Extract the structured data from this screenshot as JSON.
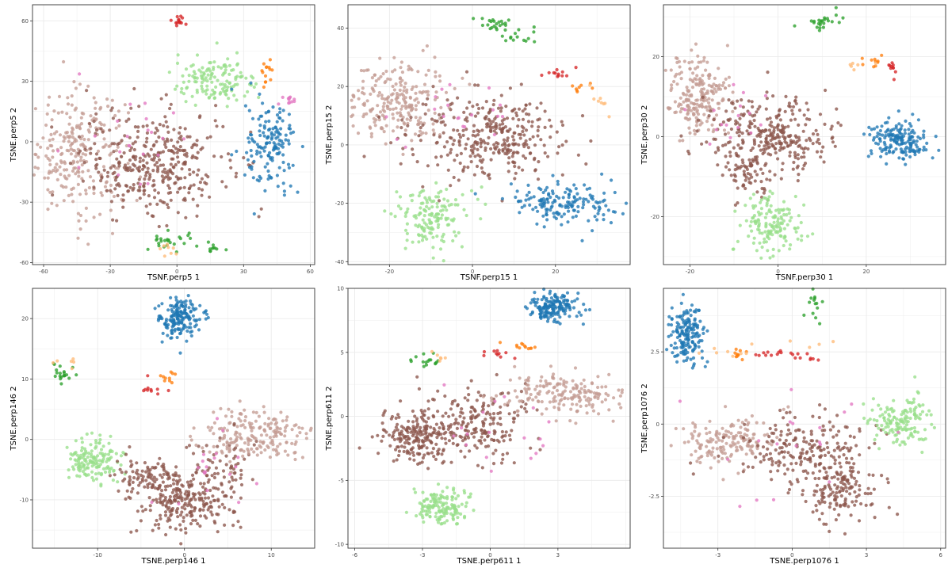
{
  "palette": {
    "blue": "#1f77b4",
    "orange": "#ff7f0e",
    "peach": "#ffbb78",
    "green": "#2ca02c",
    "light_green": "#98df8a",
    "red": "#d62728",
    "brown": "#8c564b",
    "tan": "#c49c94",
    "pink": "#e377c2",
    "grid": "#ebebeb",
    "border": "#333333"
  },
  "chart_data": [
    {
      "type": "scatter",
      "xlabel": "TSNF.perp5 1",
      "ylabel": "TSNE.perp5 2",
      "xlim": [
        -65,
        62
      ],
      "ylim": [
        -61,
        68
      ],
      "xticks": [
        -60,
        -30,
        0,
        30,
        60
      ],
      "yticks": [
        -60,
        -30,
        0,
        30,
        60
      ],
      "grid": true,
      "clusters": [
        {
          "color": "tan",
          "cx": -45,
          "cy": -5,
          "sx": 11,
          "sy": 15,
          "n": 260
        },
        {
          "color": "brown",
          "cx": -10,
          "cy": -10,
          "sx": 16,
          "sy": 13,
          "n": 360
        },
        {
          "color": "light_green",
          "cx": 18,
          "cy": 30,
          "sx": 10,
          "sy": 6,
          "n": 140
        },
        {
          "color": "blue",
          "cx": 42,
          "cy": -3,
          "sx": 5.5,
          "sy": 11,
          "n": 150
        },
        {
          "color": "red",
          "cx": 2,
          "cy": 60,
          "sx": 2.5,
          "sy": 1.5,
          "n": 14
        },
        {
          "color": "orange",
          "cx": 40,
          "cy": 36,
          "sx": 2,
          "sy": 4,
          "n": 14
        },
        {
          "color": "pink",
          "cx": 50,
          "cy": 20,
          "sx": 3,
          "sy": 1.5,
          "n": 12
        },
        {
          "color": "green",
          "cx": -2,
          "cy": -50,
          "sx": 5,
          "sy": 2.5,
          "n": 25
        },
        {
          "color": "green",
          "cx": 16,
          "cy": -52,
          "sx": 3,
          "sy": 1.5,
          "n": 10
        },
        {
          "color": "peach",
          "cx": -5,
          "cy": -54,
          "sx": 3,
          "sy": 1.5,
          "n": 8
        },
        {
          "color": "pink",
          "cx": -20,
          "cy": 0,
          "sx": 14,
          "sy": 14,
          "n": 22
        }
      ]
    },
    {
      "type": "scatter",
      "xlabel": "TSNF.perp15 1",
      "ylabel": "TSNE.perp15 2",
      "xlim": [
        -30,
        38
      ],
      "ylim": [
        -41,
        48
      ],
      "xticks": [
        -20,
        0,
        20
      ],
      "yticks": [
        -40,
        -20,
        0,
        20,
        40
      ],
      "grid": true,
      "clusters": [
        {
          "color": "tan",
          "cx": -19,
          "cy": 15,
          "sx": 6.5,
          "sy": 7,
          "n": 240
        },
        {
          "color": "brown",
          "cx": 3,
          "cy": 3,
          "sx": 9.5,
          "sy": 7,
          "n": 330
        },
        {
          "color": "light_green",
          "cx": -10,
          "cy": -25,
          "sx": 4.5,
          "sy": 5,
          "n": 150
        },
        {
          "color": "blue",
          "cx": 22,
          "cy": -20,
          "sx": 6.5,
          "sy": 3.5,
          "n": 160
        },
        {
          "color": "green",
          "cx": 5,
          "cy": 41,
          "sx": 2,
          "sy": 1.5,
          "n": 22
        },
        {
          "color": "green",
          "cx": 11,
          "cy": 37,
          "sx": 2.5,
          "sy": 1.5,
          "n": 14
        },
        {
          "color": "red",
          "cx": 21,
          "cy": 24.5,
          "sx": 2,
          "sy": 0.8,
          "n": 12
        },
        {
          "color": "orange",
          "cx": 27,
          "cy": 20,
          "sx": 2,
          "sy": 1,
          "n": 8
        },
        {
          "color": "peach",
          "cx": 31,
          "cy": 15,
          "sx": 2,
          "sy": 2,
          "n": 8
        },
        {
          "color": "pink",
          "cx": -5,
          "cy": 10,
          "sx": 8,
          "sy": 6,
          "n": 20
        }
      ]
    },
    {
      "type": "scatter",
      "xlabel": "TSNF.perp30 1",
      "ylabel": "TSNE.perp30 2",
      "xlim": [
        -26,
        38
      ],
      "ylim": [
        -32,
        33
      ],
      "xticks": [
        -20,
        0,
        20
      ],
      "yticks": [
        -20,
        0,
        20
      ],
      "grid": true,
      "clusters": [
        {
          "color": "tan",
          "cx": -18,
          "cy": 10,
          "sx": 3.5,
          "sy": 5,
          "n": 220
        },
        {
          "color": "brown",
          "cx": -2,
          "cy": 0,
          "sx": 7,
          "sy": 5,
          "n": 300
        },
        {
          "color": "brown",
          "cx": -7,
          "cy": -9,
          "sx": 3,
          "sy": 3,
          "n": 60
        },
        {
          "color": "light_green",
          "cx": -2,
          "cy": -22,
          "sx": 3.5,
          "sy": 3.5,
          "n": 150
        },
        {
          "color": "blue",
          "cx": 28,
          "cy": -1,
          "sx": 3.5,
          "sy": 2.8,
          "n": 170
        },
        {
          "color": "green",
          "cx": 9,
          "cy": 29,
          "sx": 3,
          "sy": 1,
          "n": 24
        },
        {
          "color": "orange",
          "cx": 22,
          "cy": 19,
          "sx": 1.5,
          "sy": 0.7,
          "n": 10
        },
        {
          "color": "red",
          "cx": 26,
          "cy": 17,
          "sx": 0.5,
          "sy": 1.2,
          "n": 10
        },
        {
          "color": "peach",
          "cx": 18,
          "cy": 18,
          "sx": 1.5,
          "sy": 0.5,
          "n": 6
        },
        {
          "color": "pink",
          "cx": -10,
          "cy": 5,
          "sx": 5,
          "sy": 4,
          "n": 16
        }
      ]
    },
    {
      "type": "scatter",
      "xlabel": "TSNE.perp146 1",
      "ylabel": "TSNE.perp146 2",
      "xlim": [
        -17.5,
        15
      ],
      "ylim": [
        -18,
        25
      ],
      "xticks": [
        -10,
        0,
        10
      ],
      "yticks": [
        -10,
        0,
        10,
        20
      ],
      "grid": true,
      "clusters": [
        {
          "color": "blue",
          "cx": -0.6,
          "cy": 20,
          "sx": 1.2,
          "sy": 1.7,
          "n": 170
        },
        {
          "color": "light_green",
          "cx": -10.5,
          "cy": -3.5,
          "sx": 1.5,
          "sy": 1.8,
          "n": 150
        },
        {
          "color": "brown",
          "cx": 0,
          "cy": -10.5,
          "sx": 2.8,
          "sy": 2.5,
          "n": 250
        },
        {
          "color": "brown",
          "cx": -4.5,
          "cy": -6,
          "sx": 2,
          "sy": 1.5,
          "n": 80
        },
        {
          "color": "brown",
          "cx": 4,
          "cy": -4,
          "sx": 2,
          "sy": 3,
          "n": 60
        },
        {
          "color": "tan",
          "cx": 8,
          "cy": 0.5,
          "sx": 3.5,
          "sy": 2.2,
          "n": 200
        },
        {
          "color": "green",
          "cx": -14.5,
          "cy": 11,
          "sx": 0.8,
          "sy": 0.8,
          "n": 20
        },
        {
          "color": "orange",
          "cx": -2.2,
          "cy": 10.3,
          "sx": 0.5,
          "sy": 0.4,
          "n": 10
        },
        {
          "color": "red",
          "cx": -3.7,
          "cy": 8.3,
          "sx": 0.8,
          "sy": 0.6,
          "n": 10
        },
        {
          "color": "peach",
          "cx": -14,
          "cy": 12.5,
          "sx": 0.8,
          "sy": 0.8,
          "n": 6
        },
        {
          "color": "pink",
          "cx": 3,
          "cy": -5,
          "sx": 3,
          "sy": 4,
          "n": 20
        }
      ]
    },
    {
      "type": "scatter",
      "xlabel": "TSNE.perp611 1",
      "ylabel": "TSNE.perp611 2",
      "xlim": [
        -6.3,
        6.2
      ],
      "ylim": [
        -10.3,
        10
      ],
      "xticks": [
        -6,
        -3,
        0,
        3
      ],
      "yticks": [
        -10,
        -5,
        0,
        5,
        10
      ],
      "grid": true,
      "clusters": [
        {
          "color": "blue",
          "cx": 2.8,
          "cy": 8.6,
          "sx": 0.55,
          "sy": 0.65,
          "n": 170
        },
        {
          "color": "brown",
          "cx": -3.2,
          "cy": -1.5,
          "sx": 0.9,
          "sy": 1.1,
          "n": 220
        },
        {
          "color": "brown",
          "cx": -0.5,
          "cy": -0.5,
          "sx": 1.1,
          "sy": 1.4,
          "n": 180
        },
        {
          "color": "tan",
          "cx": 3.1,
          "cy": 1.7,
          "sx": 1.2,
          "sy": 0.9,
          "n": 180
        },
        {
          "color": "light_green",
          "cx": -2.2,
          "cy": -7,
          "sx": 0.6,
          "sy": 0.7,
          "n": 150
        },
        {
          "color": "green",
          "cx": -2.8,
          "cy": 4.2,
          "sx": 0.35,
          "sy": 0.3,
          "n": 16
        },
        {
          "color": "red",
          "cx": 0.4,
          "cy": 4.8,
          "sx": 0.4,
          "sy": 0.15,
          "n": 10
        },
        {
          "color": "orange",
          "cx": 1.4,
          "cy": 5.5,
          "sx": 0.45,
          "sy": 0.15,
          "n": 12
        },
        {
          "color": "peach",
          "cx": -2.2,
          "cy": 4.6,
          "sx": 0.4,
          "sy": 0.25,
          "n": 6
        },
        {
          "color": "pink",
          "cx": 0.5,
          "cy": -1,
          "sx": 1.5,
          "sy": 1.5,
          "n": 18
        }
      ]
    },
    {
      "type": "scatter",
      "xlabel": "TSNE.perp1076 1",
      "ylabel": "TSNE.perp1076 2",
      "xlim": [
        -5.2,
        6.2
      ],
      "ylim": [
        -4.3,
        4.7
      ],
      "xticks": [
        -3,
        0,
        3,
        6
      ],
      "yticks": [
        -2.5,
        0.0,
        2.5
      ],
      "grid": true,
      "clusters": [
        {
          "color": "blue",
          "cx": -4.3,
          "cy": 3.1,
          "sx": 0.35,
          "sy": 0.5,
          "n": 170
        },
        {
          "color": "tan",
          "cx": -2.7,
          "cy": -0.5,
          "sx": 0.9,
          "sy": 0.4,
          "n": 160
        },
        {
          "color": "brown",
          "cx": 0.5,
          "cy": -0.8,
          "sx": 1.3,
          "sy": 0.6,
          "n": 200
        },
        {
          "color": "brown",
          "cx": 1.7,
          "cy": -2.3,
          "sx": 0.8,
          "sy": 0.55,
          "n": 150
        },
        {
          "color": "light_green",
          "cx": 4.5,
          "cy": 0.1,
          "sx": 0.7,
          "sy": 0.45,
          "n": 150
        },
        {
          "color": "green",
          "cx": 0.8,
          "cy": 4.1,
          "sx": 0.3,
          "sy": 0.4,
          "n": 16
        },
        {
          "color": "orange",
          "cx": -2.3,
          "cy": 2.45,
          "sx": 0.2,
          "sy": 0.1,
          "n": 10
        },
        {
          "color": "red",
          "cx": -1,
          "cy": 2.45,
          "sx": 0.8,
          "sy": 0.05,
          "n": 14
        },
        {
          "color": "red",
          "cx": 0.8,
          "cy": 2.25,
          "sx": 0.3,
          "sy": 0.05,
          "n": 6
        },
        {
          "color": "peach",
          "cx": -1.2,
          "cy": 2.65,
          "sx": 1.2,
          "sy": 0.2,
          "n": 12
        },
        {
          "color": "pink",
          "cx": 0,
          "cy": -1,
          "sx": 2,
          "sy": 1.5,
          "n": 18
        }
      ]
    }
  ]
}
